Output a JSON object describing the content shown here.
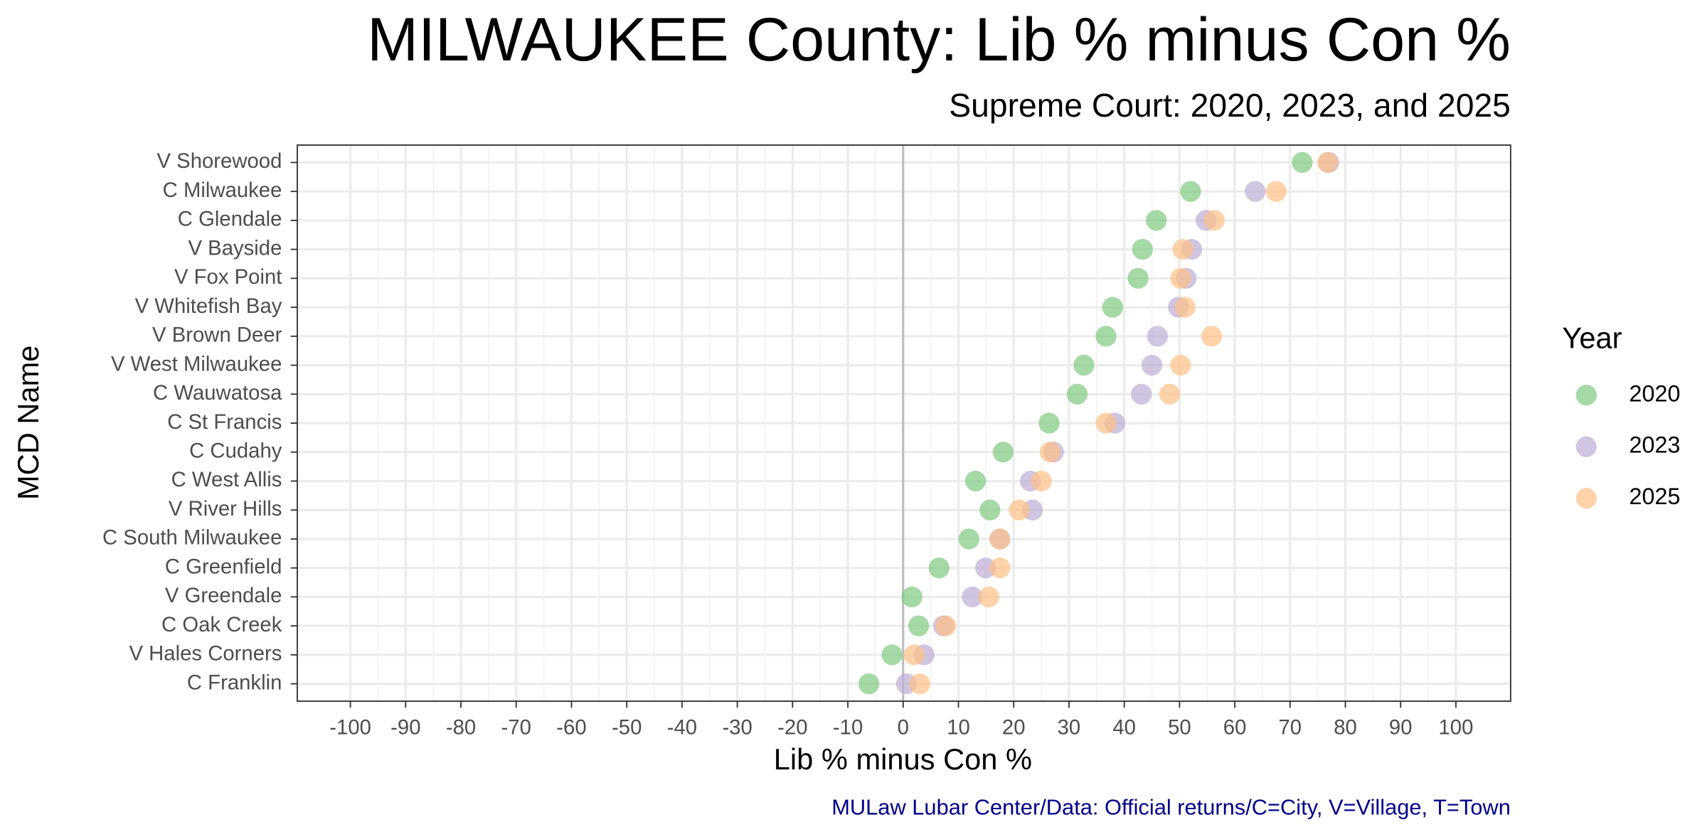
{
  "chart_data": {
    "type": "dot",
    "title": "MILWAUKEE County: Lib % minus Con %",
    "subtitle": "Supreme Court: 2020, 2023, and 2025",
    "x_label": "Lib % minus Con %",
    "y_label": "MCD Name",
    "caption": "MULaw Lubar Center/Data: Official returns/C=City, V=Village, T=Town",
    "legend_title": "Year",
    "categories": [
      "V Shorewood",
      "C Milwaukee",
      "C Glendale",
      "V Bayside",
      "V Fox Point",
      "V Whitefish Bay",
      "V Brown Deer",
      "V West Milwaukee",
      "C Wauwatosa",
      "C St Francis",
      "C Cudahy",
      "C West Allis",
      "V River Hills",
      "C South Milwaukee",
      "C Greenfield",
      "V Greendale",
      "C Oak Creek",
      "V Hales Corners",
      "C Franklin"
    ],
    "series": [
      {
        "name": "2020",
        "color": "#7fc97f",
        "values": [
          72.2,
          52.0,
          45.8,
          43.3,
          42.5,
          37.9,
          36.7,
          32.7,
          31.5,
          26.4,
          18.1,
          13.1,
          15.7,
          11.9,
          6.5,
          1.6,
          2.8,
          -2.0,
          -6.2
        ]
      },
      {
        "name": "2023",
        "color": "#beaed4",
        "values": [
          77.0,
          63.7,
          54.8,
          52.2,
          51.2,
          49.8,
          46.0,
          45.0,
          43.1,
          38.3,
          27.2,
          23.0,
          23.4,
          17.5,
          14.9,
          12.5,
          7.3,
          3.8,
          0.6
        ]
      },
      {
        "name": "2025",
        "color": "#fdc086",
        "values": [
          76.8,
          67.5,
          56.3,
          50.6,
          50.2,
          51.0,
          55.8,
          50.2,
          48.2,
          36.7,
          26.6,
          25.0,
          21.0,
          17.5,
          17.5,
          15.5,
          7.7,
          2.0,
          3.0
        ]
      }
    ],
    "xlim": [
      -109.6,
      109.9
    ],
    "xticks": [
      -100,
      -90,
      -80,
      -70,
      -60,
      -50,
      -40,
      -30,
      -20,
      -10,
      0,
      10,
      20,
      30,
      40,
      50,
      60,
      70,
      80,
      90,
      100
    ],
    "reference_line": 0,
    "grid": true
  }
}
